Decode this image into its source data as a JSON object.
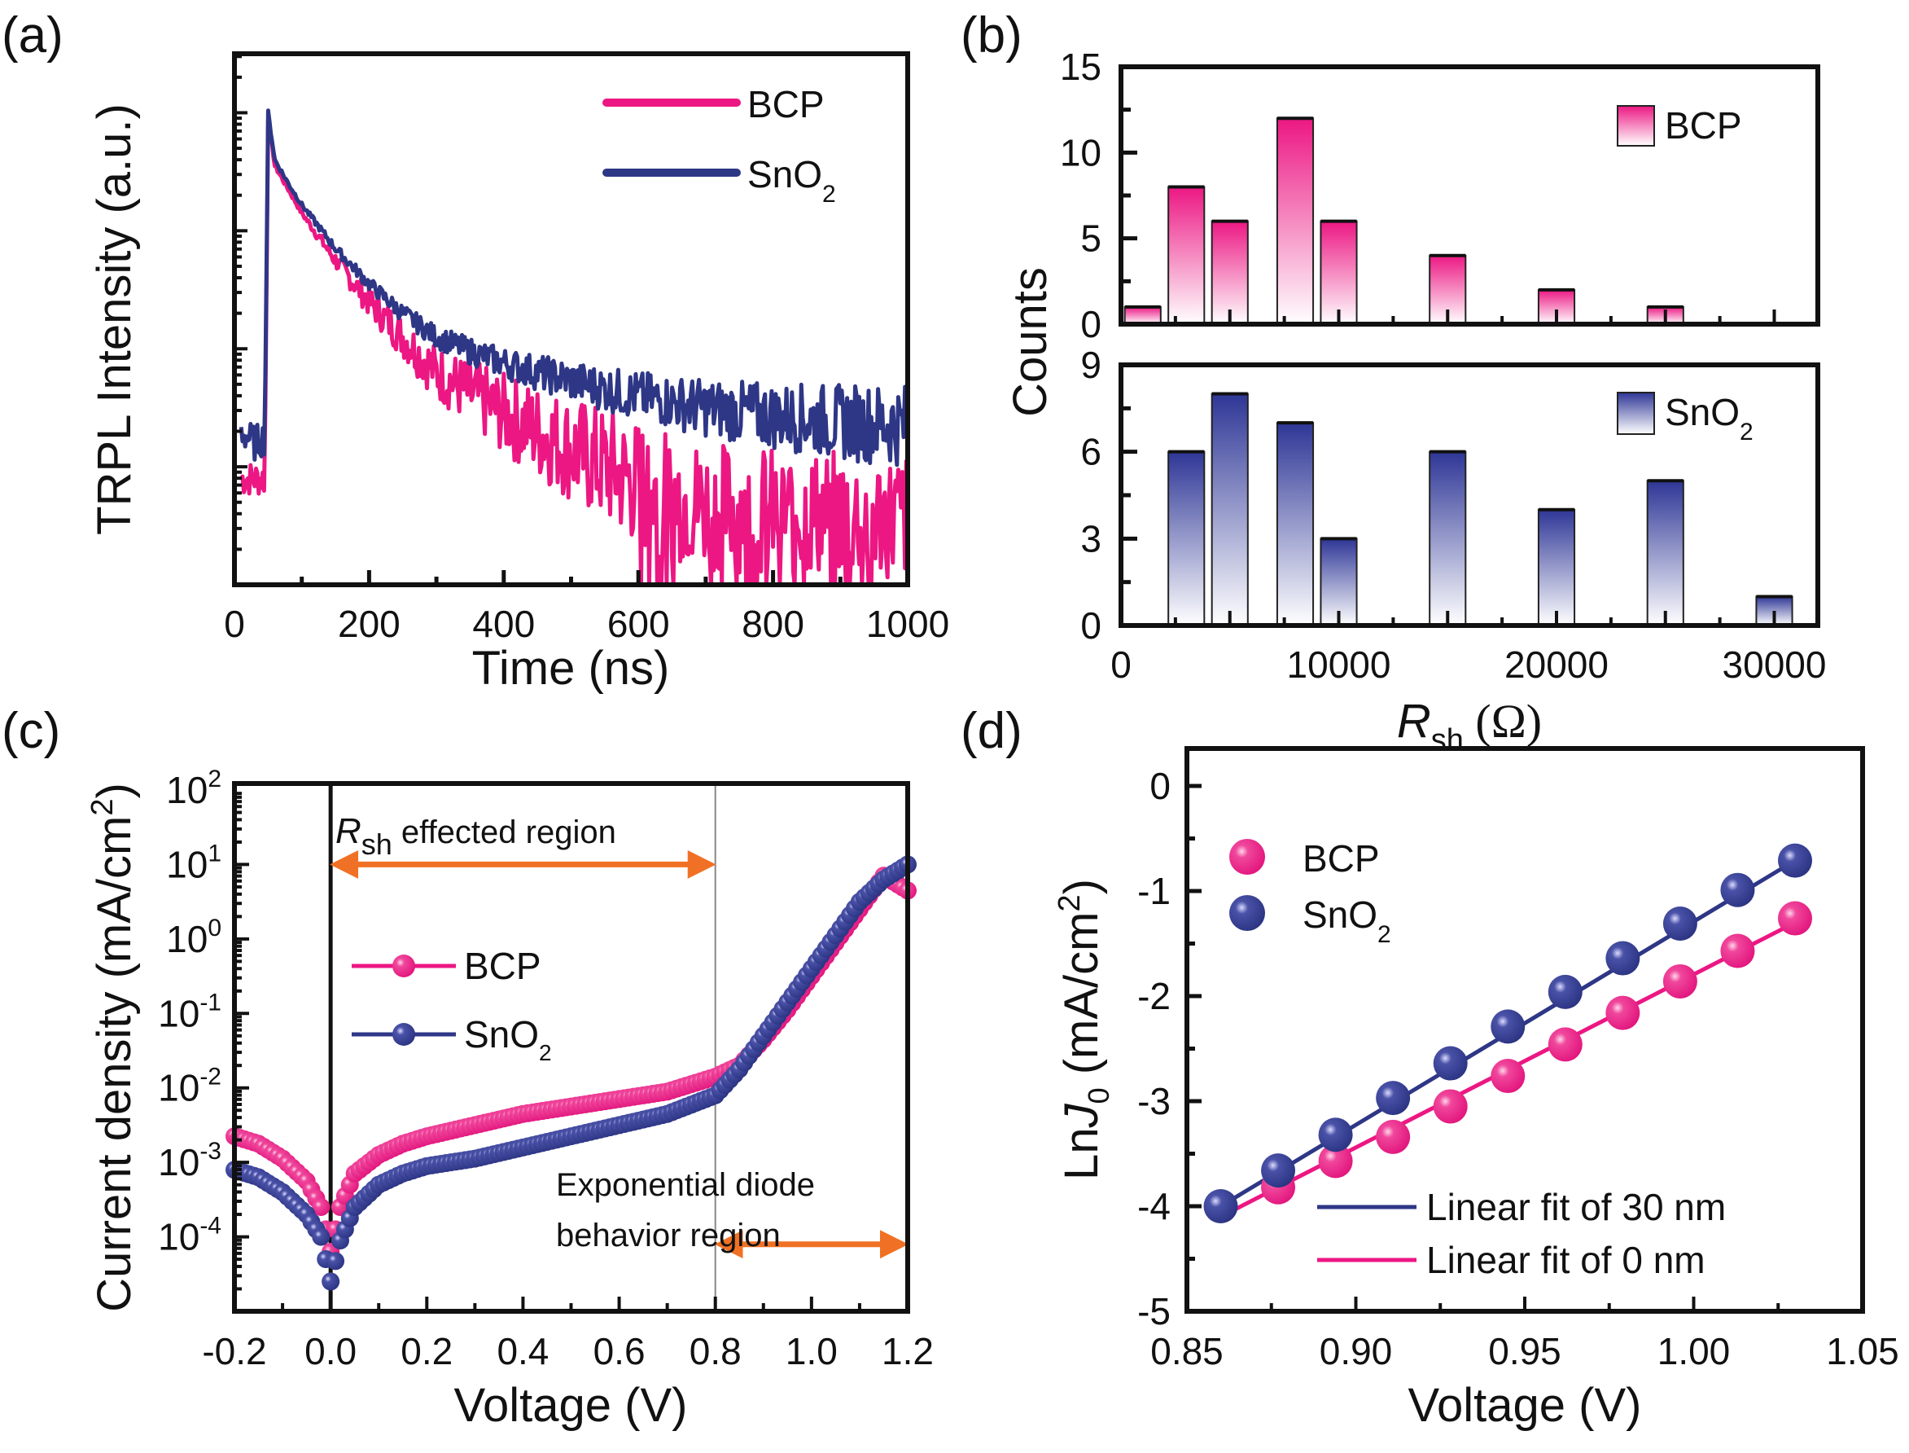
{
  "colors": {
    "bcp": "#EC1783",
    "sno2": "#2E3686",
    "arrow": "#F07125",
    "axis": "#111111"
  },
  "chart_data": [
    {
      "id": "a",
      "panel_label": "(a)",
      "type": "line",
      "title": "",
      "xlabel": "Time (ns)",
      "ylabel": "TRPL Intensity (a.u.)",
      "xlim": [
        0,
        1000
      ],
      "ylim_log_decades": [
        0,
        4
      ],
      "y_scale": "log (unlabeled)",
      "xticks": [
        0,
        200,
        400,
        600,
        800,
        1000
      ],
      "xtick_labels": [
        "0",
        "200",
        "400",
        "600",
        "800",
        "1000"
      ],
      "legend": {
        "position": "top-right",
        "entries": [
          "BCP",
          "SnO2"
        ]
      },
      "series": [
        {
          "name": "BCP",
          "label_main": "BCP",
          "label_sub": "",
          "description": "rise at ~50 ns then multi-exponential decay; noisy floor reached after ~600 ns",
          "x": [
            10,
            30,
            45,
            50,
            60,
            80,
            100,
            150,
            200,
            250,
            300,
            350,
            400,
            450,
            500,
            550,
            600,
            650,
            700,
            800,
            900,
            1000
          ],
          "log_intensity": [
            0.9,
            0.9,
            0.9,
            3.95,
            3.55,
            3.35,
            3.15,
            2.75,
            2.4,
            2.1,
            1.8,
            1.62,
            1.45,
            1.3,
            1.15,
            1.0,
            0.85,
            0.75,
            0.68,
            0.62,
            0.6,
            0.58
          ]
        },
        {
          "name": "SnO2",
          "label_main": "SnO",
          "label_sub": "2",
          "description": "rise at ~50 ns then slower decay with higher long-time tail",
          "x": [
            10,
            30,
            45,
            50,
            60,
            80,
            100,
            150,
            200,
            250,
            300,
            350,
            400,
            450,
            500,
            550,
            600,
            650,
            700,
            800,
            900,
            1000
          ],
          "log_intensity": [
            1.3,
            1.2,
            1.25,
            4.0,
            3.6,
            3.4,
            3.22,
            2.85,
            2.55,
            2.3,
            2.1,
            1.98,
            1.88,
            1.8,
            1.73,
            1.66,
            1.6,
            1.55,
            1.5,
            1.43,
            1.38,
            1.35
          ]
        }
      ]
    },
    {
      "id": "b",
      "panel_label": "(b)",
      "type": "bar",
      "title": "",
      "xlabel_main": "R",
      "xlabel_sub": "sh",
      "xlabel_unit": " (Ω)",
      "xlabel": "Rsh (Ω)",
      "ylabel": "Counts",
      "xlim": [
        0,
        32000
      ],
      "xticks": [
        0,
        10000,
        20000,
        30000
      ],
      "xtick_labels": [
        "0",
        "10000",
        "20000",
        "30000"
      ],
      "bin_width": 1650,
      "subplots": [
        {
          "name": "BCP",
          "label_main": "BCP",
          "label_sub": "",
          "ylim": [
            0,
            15
          ],
          "yticks": [
            0,
            5,
            10,
            15
          ],
          "ytick_labels": [
            "0",
            "5",
            "10",
            "15"
          ],
          "legend": {
            "position": "top-right"
          },
          "bin_centers": [
            1000,
            3000,
            5000,
            8000,
            10000,
            15000,
            20000,
            25000
          ],
          "counts": [
            1,
            8,
            6,
            12,
            6,
            4,
            2,
            1
          ]
        },
        {
          "name": "SnO2",
          "label_main": "SnO",
          "label_sub": "2",
          "ylim": [
            0,
            9
          ],
          "yticks": [
            0,
            3,
            6,
            9
          ],
          "ytick_labels": [
            "0",
            "3",
            "6",
            "9"
          ],
          "legend": {
            "position": "top-right"
          },
          "bin_centers": [
            3000,
            5000,
            8000,
            10000,
            15000,
            20000,
            25000,
            30000
          ],
          "counts": [
            6,
            8,
            7,
            3,
            6,
            4,
            5,
            1
          ]
        }
      ]
    },
    {
      "id": "c",
      "panel_label": "(c)",
      "type": "scatter",
      "title": "",
      "xlabel": "Voltage (V)",
      "ylabel_main": "Current density (mA/cm",
      "ylabel_sup": "2",
      "ylabel_end": ")",
      "ylabel": "Current density (mA/cm2)",
      "xlim": [
        -0.2,
        1.2
      ],
      "ylim_exp": [
        -5,
        2
      ],
      "y_scale": "log",
      "xticks": [
        -0.2,
        0.0,
        0.2,
        0.4,
        0.6,
        0.8,
        1.0,
        1.2
      ],
      "xtick_labels": [
        "-0.2",
        "0.0",
        "0.2",
        "0.4",
        "0.6",
        "0.8",
        "1.0",
        "1.2"
      ],
      "yticks_exp": [
        -4,
        -3,
        -2,
        -1,
        0,
        1,
        2
      ],
      "ytick_labels": [
        {
          "base": "10",
          "exp": "-4"
        },
        {
          "base": "10",
          "exp": "-3"
        },
        {
          "base": "10",
          "exp": "-2"
        },
        {
          "base": "10",
          "exp": "-1"
        },
        {
          "base": "10",
          "exp": "0"
        },
        {
          "base": "10",
          "exp": "1"
        },
        {
          "base": "10",
          "exp": "2"
        }
      ],
      "legend": {
        "position": "middle-left",
        "entries": [
          "BCP",
          "SnO2"
        ]
      },
      "vlines": [
        0.0,
        0.8
      ],
      "annotations": [
        {
          "text_main": "R",
          "text_sub": "sh",
          "text_rest": " effected region",
          "arrow_from": 0.0,
          "arrow_to": 0.8,
          "arrow_at_exp": 1.0
        },
        {
          "text_line1": "Exponential diode",
          "text_line2": "behavior region",
          "arrow_from": 0.8,
          "arrow_to": 1.2,
          "arrow_at_exp": -4.1
        }
      ],
      "series": [
        {
          "name": "BCP",
          "label_main": "BCP",
          "label_sub": "",
          "x": [
            -0.2,
            -0.15,
            -0.1,
            -0.05,
            -0.02,
            0.0,
            0.02,
            0.05,
            0.1,
            0.15,
            0.2,
            0.3,
            0.4,
            0.5,
            0.6,
            0.7,
            0.8,
            0.85,
            0.9,
            0.95,
            1.0,
            1.05,
            1.1,
            1.15,
            1.2
          ],
          "log10_j": [
            -2.65,
            -2.75,
            -2.95,
            -3.25,
            -3.6,
            -4.2,
            -3.6,
            -3.15,
            -2.9,
            -2.75,
            -2.65,
            -2.5,
            -2.35,
            -2.25,
            -2.15,
            -2.05,
            -1.85,
            -1.7,
            -1.35,
            -0.95,
            -0.5,
            -0.05,
            0.4,
            0.85,
            0.65
          ]
        },
        {
          "name": "SnO2",
          "label_main": "SnO",
          "label_sub": "2",
          "x": [
            -0.2,
            -0.15,
            -0.1,
            -0.05,
            -0.02,
            0.0,
            0.02,
            0.05,
            0.1,
            0.15,
            0.2,
            0.3,
            0.4,
            0.5,
            0.6,
            0.7,
            0.8,
            0.85,
            0.9,
            0.95,
            1.0,
            1.05,
            1.1,
            1.15,
            1.2
          ],
          "log10_j": [
            -3.1,
            -3.2,
            -3.4,
            -3.7,
            -4.0,
            -4.6,
            -4.05,
            -3.6,
            -3.3,
            -3.15,
            -3.05,
            -2.95,
            -2.8,
            -2.65,
            -2.5,
            -2.35,
            -2.1,
            -1.75,
            -1.3,
            -0.85,
            -0.4,
            0.05,
            0.5,
            0.8,
            1.0
          ]
        }
      ]
    },
    {
      "id": "d",
      "panel_label": "(d)",
      "type": "scatter",
      "title": "",
      "xlabel": "Voltage (V)",
      "ylabel_main": "Ln",
      "ylabel_italic": "J",
      "ylabel_sub": "0",
      "ylabel_unit": " (mA/cm",
      "ylabel_sup": "2",
      "ylabel_end": ")",
      "ylabel": "LnJ0 (mA/cm2)",
      "xlim": [
        0.85,
        1.05
      ],
      "ylim": [
        -5,
        0
      ],
      "xticks": [
        0.85,
        0.9,
        0.95,
        1.0,
        1.05
      ],
      "xtick_labels": [
        "0.85",
        "0.90",
        "0.95",
        "1.00",
        "1.05"
      ],
      "yticks": [
        -5,
        -4,
        -3,
        -2,
        -1,
        0
      ],
      "ytick_labels": [
        "-5",
        "-4",
        "-3",
        "-2",
        "-1",
        "0"
      ],
      "legend": {
        "position": "top-left",
        "entries": [
          "BCP",
          "SnO2"
        ]
      },
      "fit_legend": {
        "position": "bottom-right",
        "entries": [
          "Linear fit of 30 nm",
          "Linear fit of 0 nm"
        ]
      },
      "series": [
        {
          "name": "BCP",
          "label_main": "BCP",
          "label_sub": "",
          "x": [
            0.877,
            0.894,
            0.911,
            0.928,
            0.945,
            0.962,
            0.979,
            0.996,
            1.013,
            1.03
          ],
          "y": [
            -3.82,
            -3.57,
            -3.34,
            -3.05,
            -2.76,
            -2.46,
            -2.16,
            -1.86,
            -1.57,
            -1.26
          ],
          "fit": {
            "label": "Linear fit of 0 nm",
            "x": [
              0.86,
              1.03
            ],
            "y": [
              -4.1,
              -1.3
            ]
          }
        },
        {
          "name": "SnO2",
          "label_main": "SnO",
          "label_sub": "2",
          "x": [
            0.86,
            0.877,
            0.894,
            0.911,
            0.928,
            0.945,
            0.962,
            0.979,
            0.996,
            1.013,
            1.03
          ],
          "y": [
            -4.0,
            -3.66,
            -3.32,
            -2.97,
            -2.64,
            -2.29,
            -1.96,
            -1.64,
            -1.31,
            -0.99,
            -0.71
          ],
          "fit": {
            "label": "Linear fit of 30 nm",
            "x": [
              0.86,
              1.03
            ],
            "y": [
              -4.0,
              -0.71
            ]
          }
        }
      ]
    }
  ]
}
